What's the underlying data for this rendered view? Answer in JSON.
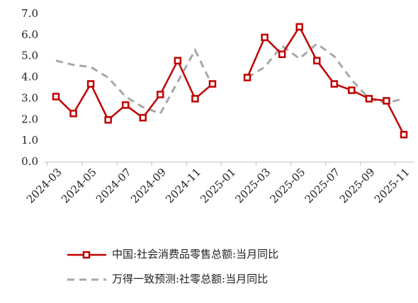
{
  "chart_data": {
    "type": "line",
    "categories": [
      "2024-03",
      null,
      "2024-05",
      null,
      "2024-07",
      null,
      "2024-09",
      null,
      "2024-11",
      null,
      "2025-01",
      null,
      "2025-03",
      null,
      "2025-05",
      null,
      "2025-07",
      null,
      "2025-09",
      null,
      "2025-11"
    ],
    "series": [
      {
        "name": "中国:社会消费品零售总额:当月同比",
        "color": "#c00000",
        "style": "solid",
        "marker": "square",
        "values": [
          3.1,
          2.3,
          3.7,
          2.0,
          2.7,
          2.1,
          3.2,
          4.8,
          3.0,
          3.7,
          null,
          4.0,
          5.9,
          5.1,
          6.4,
          4.8,
          3.7,
          3.4,
          3.0,
          2.9,
          1.3
        ]
      },
      {
        "name": "万得一致预测:社零总额:当月同比",
        "color": "#a6a6a6",
        "style": "dashed",
        "marker": "none",
        "values": [
          4.8,
          4.6,
          4.5,
          4.0,
          3.1,
          2.6,
          2.3,
          3.8,
          5.3,
          3.6,
          null,
          4.0,
          4.5,
          5.5,
          4.9,
          5.6,
          5.0,
          3.9,
          3.0,
          2.8,
          3.0
        ]
      }
    ],
    "ylim": [
      0,
      7
    ],
    "yticks": [
      {
        "value": 0,
        "label": "0.0"
      },
      {
        "value": 1,
        "label": "1.0"
      },
      {
        "value": 2,
        "label": "2.0"
      },
      {
        "value": 3,
        "label": "3.0"
      },
      {
        "value": 4,
        "label": "4.0"
      },
      {
        "value": 5,
        "label": "5.0"
      },
      {
        "value": 6,
        "label": "6.0"
      },
      {
        "value": 7,
        "label": "7.0"
      }
    ],
    "grid": false,
    "legend": "bottom"
  }
}
